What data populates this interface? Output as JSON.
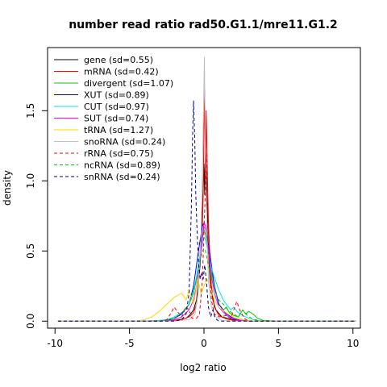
{
  "chart_data": {
    "type": "line",
    "title": "number read ratio rad50.G1.1/mre11.G1.2",
    "xlabel": "log2 ratio",
    "ylabel": "density",
    "xlim": [
      -10.5,
      10.5
    ],
    "ylim": [
      -0.05,
      1.95
    ],
    "x_ticks": [
      -10,
      -5,
      0,
      5,
      10
    ],
    "y_ticks": [
      0.0,
      0.5,
      1.0,
      1.5
    ],
    "x_tick_labels": [
      "-10",
      "-5",
      "0",
      "5",
      "10"
    ],
    "y_tick_labels": [
      "0.0",
      "0.5",
      "1.0",
      "1.5"
    ],
    "grid": false,
    "legend_position": "top-left",
    "series": [
      {
        "name": "gene (sd=0.55)",
        "color": "#000000",
        "dash": "solid",
        "points": [
          [
            -9.8,
            0
          ],
          [
            -3,
            0
          ],
          [
            -2,
            0.005
          ],
          [
            -1.2,
            0.02
          ],
          [
            -0.9,
            0.05
          ],
          [
            -0.7,
            0.08
          ],
          [
            -0.5,
            0.15
          ],
          [
            -0.4,
            0.25
          ],
          [
            -0.3,
            0.35
          ],
          [
            -0.2,
            0.5
          ],
          [
            -0.1,
            0.8
          ],
          [
            0,
            1.12
          ],
          [
            0.05,
            0.9
          ],
          [
            0.1,
            1.25
          ],
          [
            0.2,
            0.9
          ],
          [
            0.3,
            0.5
          ],
          [
            0.4,
            0.3
          ],
          [
            0.6,
            0.15
          ],
          [
            0.8,
            0.08
          ],
          [
            1.2,
            0.03
          ],
          [
            1.6,
            0.02
          ],
          [
            2,
            0.01
          ],
          [
            3,
            0.002
          ],
          [
            10.2,
            0
          ]
        ]
      },
      {
        "name": "mRNA (sd=0.42)",
        "color": "#ff0000",
        "dash": "solid",
        "points": [
          [
            -9.8,
            0
          ],
          [
            -3,
            0
          ],
          [
            -1.5,
            0.01
          ],
          [
            -1,
            0.03
          ],
          [
            -0.7,
            0.06
          ],
          [
            -0.5,
            0.12
          ],
          [
            -0.4,
            0.2
          ],
          [
            -0.3,
            0.4
          ],
          [
            -0.2,
            0.6
          ],
          [
            -0.1,
            0.7
          ],
          [
            -0.05,
            0.9
          ],
          [
            0,
            1.4
          ],
          [
            0.05,
            1.65
          ],
          [
            0.1,
            1.0
          ],
          [
            0.15,
            1.5
          ],
          [
            0.2,
            1.2
          ],
          [
            0.3,
            0.7
          ],
          [
            0.4,
            0.45
          ],
          [
            0.5,
            0.25
          ],
          [
            0.7,
            0.1
          ],
          [
            1,
            0.04
          ],
          [
            1.5,
            0.015
          ],
          [
            2,
            0.005
          ],
          [
            3,
            0
          ],
          [
            10.2,
            0
          ]
        ]
      },
      {
        "name": "divergent (sd=1.07)",
        "color": "#00cd00",
        "dash": "solid",
        "points": [
          [
            -9.8,
            0
          ],
          [
            -4,
            0
          ],
          [
            -3,
            0.005
          ],
          [
            -2.5,
            0.01
          ],
          [
            -2,
            0.02
          ],
          [
            -1.5,
            0.05
          ],
          [
            -1,
            0.12
          ],
          [
            -0.7,
            0.2
          ],
          [
            -0.5,
            0.3
          ],
          [
            -0.3,
            0.45
          ],
          [
            -0.1,
            0.6
          ],
          [
            0,
            0.65
          ],
          [
            0.1,
            0.62
          ],
          [
            0.3,
            0.5
          ],
          [
            0.5,
            0.35
          ],
          [
            0.8,
            0.2
          ],
          [
            1,
            0.12
          ],
          [
            1.3,
            0.08
          ],
          [
            1.5,
            0.1
          ],
          [
            1.7,
            0.06
          ],
          [
            2,
            0.04
          ],
          [
            2.3,
            0.03
          ],
          [
            2.6,
            0.08
          ],
          [
            2.8,
            0.05
          ],
          [
            3,
            0.07
          ],
          [
            3.3,
            0.05
          ],
          [
            3.6,
            0.02
          ],
          [
            4,
            0.005
          ],
          [
            5,
            0
          ],
          [
            10.2,
            0
          ]
        ]
      },
      {
        "name": "XUT (sd=0.89)",
        "color": "#0000ff",
        "dash": "solid",
        "points": [
          [
            -9.8,
            0
          ],
          [
            -3,
            0
          ],
          [
            -2.5,
            0.005
          ],
          [
            -2,
            0.02
          ],
          [
            -1.5,
            0.05
          ],
          [
            -1,
            0.12
          ],
          [
            -0.7,
            0.25
          ],
          [
            -0.5,
            0.4
          ],
          [
            -0.3,
            0.55
          ],
          [
            -0.1,
            0.68
          ],
          [
            0,
            0.7
          ],
          [
            0.1,
            0.68
          ],
          [
            0.3,
            0.55
          ],
          [
            0.5,
            0.4
          ],
          [
            0.7,
            0.25
          ],
          [
            1,
            0.12
          ],
          [
            1.5,
            0.05
          ],
          [
            2,
            0.02
          ],
          [
            2.5,
            0.005
          ],
          [
            3,
            0
          ],
          [
            10.2,
            0
          ]
        ]
      },
      {
        "name": "CUT (sd=0.97)",
        "color": "#00e5ee",
        "dash": "solid",
        "points": [
          [
            -9.8,
            0
          ],
          [
            -3.5,
            0
          ],
          [
            -3,
            0.005
          ],
          [
            -2.5,
            0.01
          ],
          [
            -2,
            0.03
          ],
          [
            -1.5,
            0.06
          ],
          [
            -1,
            0.12
          ],
          [
            -0.7,
            0.22
          ],
          [
            -0.5,
            0.32
          ],
          [
            -0.3,
            0.45
          ],
          [
            -0.1,
            0.55
          ],
          [
            0,
            0.6
          ],
          [
            0.1,
            0.58
          ],
          [
            0.3,
            0.48
          ],
          [
            0.5,
            0.38
          ],
          [
            0.8,
            0.28
          ],
          [
            1,
            0.22
          ],
          [
            1.3,
            0.15
          ],
          [
            1.5,
            0.12
          ],
          [
            1.8,
            0.08
          ],
          [
            2,
            0.1
          ],
          [
            2.3,
            0.06
          ],
          [
            2.6,
            0.04
          ],
          [
            3,
            0.02
          ],
          [
            3.5,
            0.005
          ],
          [
            4,
            0
          ],
          [
            10.2,
            0
          ]
        ]
      },
      {
        "name": "SUT (sd=0.74)",
        "color": "#ff00ff",
        "dash": "solid",
        "points": [
          [
            -9.8,
            0
          ],
          [
            -3,
            0
          ],
          [
            -2.5,
            0.005
          ],
          [
            -2,
            0.01
          ],
          [
            -1.5,
            0.03
          ],
          [
            -1,
            0.08
          ],
          [
            -0.7,
            0.15
          ],
          [
            -0.5,
            0.25
          ],
          [
            -0.3,
            0.4
          ],
          [
            -0.1,
            0.6
          ],
          [
            0,
            0.7
          ],
          [
            0.1,
            0.68
          ],
          [
            0.3,
            0.5
          ],
          [
            0.5,
            0.32
          ],
          [
            0.7,
            0.2
          ],
          [
            1,
            0.1
          ],
          [
            1.5,
            0.04
          ],
          [
            2,
            0.015
          ],
          [
            2.5,
            0.005
          ],
          [
            3,
            0
          ],
          [
            10.2,
            0
          ]
        ]
      },
      {
        "name": "tRNA (sd=1.27)",
        "color": "#ffd700",
        "dash": "solid",
        "points": [
          [
            -9.8,
            0
          ],
          [
            -4.5,
            0
          ],
          [
            -4,
            0.01
          ],
          [
            -3.5,
            0.03
          ],
          [
            -3,
            0.07
          ],
          [
            -2.5,
            0.12
          ],
          [
            -2,
            0.17
          ],
          [
            -1.5,
            0.2
          ],
          [
            -1.2,
            0.15
          ],
          [
            -1,
            0.22
          ],
          [
            -0.7,
            0.12
          ],
          [
            -0.4,
            0.3
          ],
          [
            -0.2,
            0.2
          ],
          [
            0,
            0.25
          ],
          [
            0.2,
            0.3
          ],
          [
            0.4,
            0.25
          ],
          [
            0.7,
            0.15
          ],
          [
            1,
            0.1
          ],
          [
            1.5,
            0.06
          ],
          [
            2,
            0.03
          ],
          [
            2.5,
            0.015
          ],
          [
            3,
            0.005
          ],
          [
            3.5,
            0
          ],
          [
            10.2,
            0
          ]
        ]
      },
      {
        "name": "snoRNA (sd=0.24)",
        "color": "#bebebe",
        "dash": "solid",
        "points": [
          [
            -9.8,
            0
          ],
          [
            -2,
            0
          ],
          [
            -1,
            0.01
          ],
          [
            -0.6,
            0.05
          ],
          [
            -0.4,
            0.2
          ],
          [
            -0.2,
            0.6
          ],
          [
            -0.1,
            1.1
          ],
          [
            0,
            1.7
          ],
          [
            0.03,
            1.88
          ],
          [
            0.06,
            1.5
          ],
          [
            0.1,
            1.2
          ],
          [
            0.2,
            0.6
          ],
          [
            0.3,
            0.3
          ],
          [
            0.5,
            0.1
          ],
          [
            0.8,
            0.03
          ],
          [
            1.2,
            0.005
          ],
          [
            2,
            0
          ],
          [
            10.2,
            0
          ]
        ]
      },
      {
        "name": "rRNA (sd=0.75)",
        "color": "#ff0000",
        "dash": "dashed",
        "points": [
          [
            -9.8,
            0
          ],
          [
            -3,
            0
          ],
          [
            -2.5,
            0.01
          ],
          [
            -2.2,
            0.06
          ],
          [
            -2,
            0.1
          ],
          [
            -1.8,
            0.07
          ],
          [
            -1.5,
            0.03
          ],
          [
            -1.2,
            0.1
          ],
          [
            -1,
            0.08
          ],
          [
            -0.8,
            0.02
          ],
          [
            -0.5,
            0.02
          ],
          [
            -0.3,
            0.05
          ],
          [
            -0.1,
            0.3
          ],
          [
            0,
            0.65
          ],
          [
            0.1,
            0.95
          ],
          [
            0.2,
            1.2
          ],
          [
            0.3,
            0.5
          ],
          [
            0.5,
            0.15
          ],
          [
            0.7,
            0.05
          ],
          [
            1,
            0.03
          ],
          [
            1.5,
            0.04
          ],
          [
            1.8,
            0.02
          ],
          [
            2,
            0.08
          ],
          [
            2.2,
            0.14
          ],
          [
            2.4,
            0.08
          ],
          [
            2.7,
            0.02
          ],
          [
            3,
            0
          ],
          [
            10.2,
            0
          ]
        ]
      },
      {
        "name": "ncRNA (sd=0.89)",
        "color": "#00cd00",
        "dash": "dashed",
        "points": [
          [
            -9.8,
            0
          ],
          [
            -3,
            0
          ],
          [
            -2.5,
            0.005
          ],
          [
            -2,
            0.02
          ],
          [
            -1.5,
            0.06
          ],
          [
            -1,
            0.12
          ],
          [
            -0.7,
            0.2
          ],
          [
            -0.5,
            0.3
          ],
          [
            -0.3,
            0.42
          ],
          [
            -0.1,
            0.5
          ],
          [
            0,
            0.52
          ],
          [
            0.1,
            0.5
          ],
          [
            0.3,
            0.4
          ],
          [
            0.5,
            0.3
          ],
          [
            0.8,
            0.2
          ],
          [
            1,
            0.15
          ],
          [
            1.3,
            0.12
          ],
          [
            1.6,
            0.08
          ],
          [
            2,
            0.05
          ],
          [
            2.3,
            0.03
          ],
          [
            2.6,
            0.08
          ],
          [
            2.9,
            0.04
          ],
          [
            3.2,
            0.02
          ],
          [
            3.6,
            0.005
          ],
          [
            4,
            0
          ],
          [
            10.2,
            0
          ]
        ]
      },
      {
        "name": "snRNA (sd=0.24)",
        "color": "#00008b",
        "dash": "dashed",
        "points": [
          [
            -9.8,
            0
          ],
          [
            -2,
            0
          ],
          [
            -1.5,
            0.01
          ],
          [
            -1.2,
            0.05
          ],
          [
            -1,
            0.2
          ],
          [
            -0.85,
            0.8
          ],
          [
            -0.75,
            1.4
          ],
          [
            -0.7,
            1.57
          ],
          [
            -0.62,
            1.3
          ],
          [
            -0.55,
            0.9
          ],
          [
            -0.45,
            0.6
          ],
          [
            -0.35,
            0.4
          ],
          [
            -0.25,
            0.3
          ],
          [
            -0.15,
            0.35
          ],
          [
            -0.05,
            0.3
          ],
          [
            0.05,
            0.4
          ],
          [
            0.15,
            0.3
          ],
          [
            0.3,
            0.1
          ],
          [
            0.45,
            0.03
          ],
          [
            0.6,
            0.08
          ],
          [
            0.75,
            0.02
          ],
          [
            1,
            0
          ],
          [
            10.2,
            0
          ]
        ]
      }
    ]
  }
}
